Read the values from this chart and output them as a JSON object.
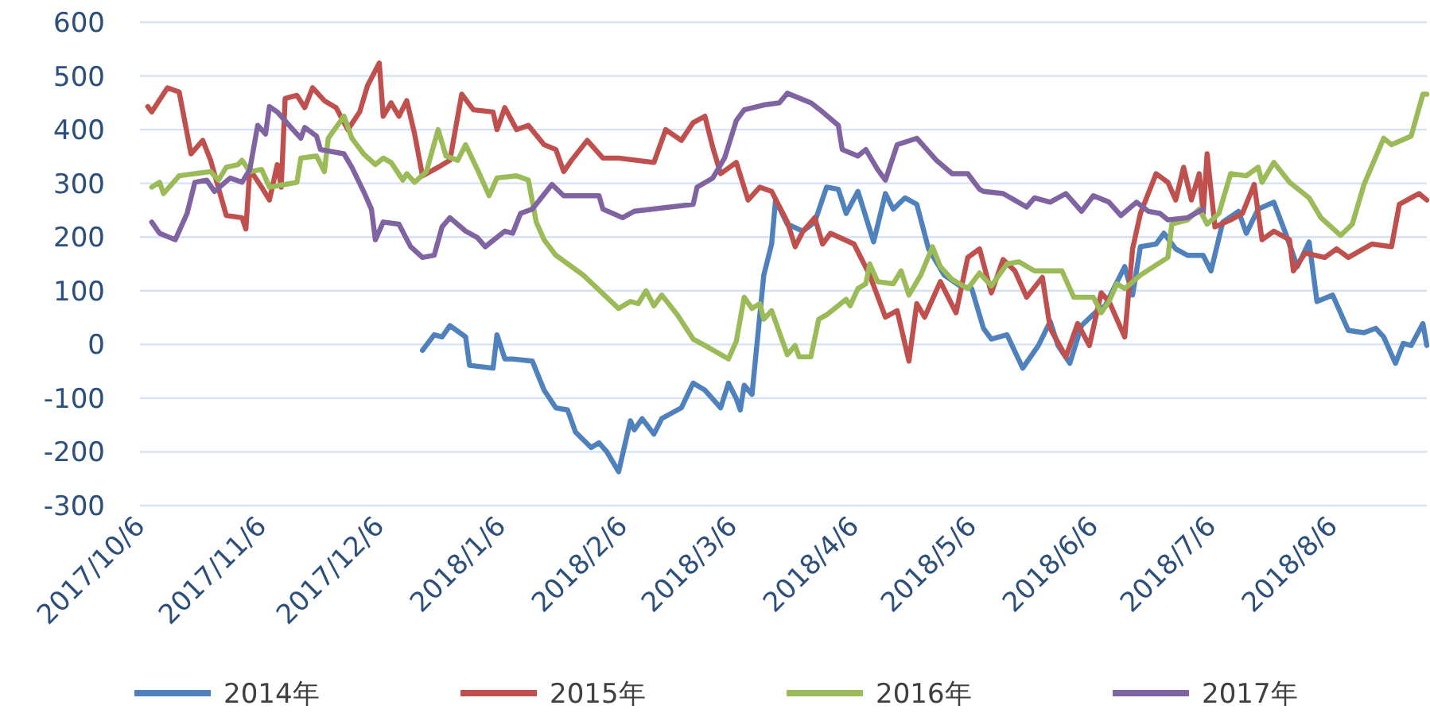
{
  "chart_data": {
    "type": "line",
    "legend": "bottom",
    "grid": "y",
    "xlim": [
      "2017-10-06",
      "2018-08-30"
    ],
    "xticks": [
      {
        "value": "2017-10-06",
        "label": "2017/10/6"
      },
      {
        "value": "2017-11-06",
        "label": "2017/11/6"
      },
      {
        "value": "2017-12-06",
        "label": "2017/12/6"
      },
      {
        "value": "2018-01-06",
        "label": "2018/1/6"
      },
      {
        "value": "2018-02-06",
        "label": "2018/2/6"
      },
      {
        "value": "2018-03-06",
        "label": "2018/3/6"
      },
      {
        "value": "2018-04-06",
        "label": "2018/4/6"
      },
      {
        "value": "2018-05-06",
        "label": "2018/5/6"
      },
      {
        "value": "2018-06-06",
        "label": "2018/6/6"
      },
      {
        "value": "2018-07-06",
        "label": "2018/7/6"
      },
      {
        "value": "2018-08-06",
        "label": "2018/8/6"
      }
    ],
    "ylim": [
      -300,
      600
    ],
    "yticks": [
      -300,
      -200,
      -100,
      0,
      100,
      200,
      300,
      400,
      500,
      600
    ],
    "series": [
      {
        "name": "2014年",
        "color": "#4f81bd",
        "x": [
          "2017-12-17",
          "2017-12-20",
          "2017-12-22",
          "2017-12-24",
          "2017-12-28",
          "2017-12-29",
          "2018-01-04",
          "2018-01-05",
          "2018-01-07",
          "2018-01-09",
          "2018-01-14",
          "2018-01-17",
          "2018-01-20",
          "2018-01-23",
          "2018-01-25",
          "2018-01-29",
          "2018-01-31",
          "2018-02-02",
          "2018-02-05",
          "2018-02-08",
          "2018-02-09",
          "2018-02-11",
          "2018-02-14",
          "2018-02-16",
          "2018-02-21",
          "2018-02-24",
          "2018-02-27",
          "2018-03-03",
          "2018-03-05",
          "2018-03-07",
          "2018-03-08",
          "2018-03-09",
          "2018-03-11",
          "2018-03-14",
          "2018-03-16",
          "2018-03-17",
          "2018-03-20",
          "2018-03-24",
          "2018-03-27",
          "2018-03-30",
          "2018-04-02",
          "2018-04-04",
          "2018-04-07",
          "2018-04-11",
          "2018-04-14",
          "2018-04-16",
          "2018-04-19",
          "2018-04-22",
          "2018-04-25",
          "2018-04-29",
          "2018-05-03",
          "2018-05-06",
          "2018-05-09",
          "2018-05-11",
          "2018-05-15",
          "2018-05-19",
          "2018-05-23",
          "2018-05-26",
          "2018-05-28",
          "2018-05-31",
          "2018-06-03",
          "2018-06-07",
          "2018-06-09",
          "2018-06-14",
          "2018-06-16",
          "2018-06-18",
          "2018-06-22",
          "2018-06-24",
          "2018-06-27",
          "2018-06-30",
          "2018-07-04",
          "2018-07-06",
          "2018-07-09",
          "2018-07-13",
          "2018-07-15",
          "2018-07-18",
          "2018-07-22",
          "2018-07-25",
          "2018-07-28",
          "2018-07-31",
          "2018-08-02",
          "2018-08-06",
          "2018-08-10",
          "2018-08-14",
          "2018-08-17",
          "2018-08-19",
          "2018-08-22",
          "2018-08-24",
          "2018-08-26",
          "2018-08-29",
          "2018-08-30"
        ],
        "values": [
          -11,
          18,
          14,
          35,
          14,
          -39,
          -44,
          18,
          -27,
          -27,
          -31,
          -85,
          -118,
          -122,
          -163,
          -192,
          -183,
          -200,
          -237,
          -142,
          -159,
          -138,
          -167,
          -138,
          -118,
          -72,
          -85,
          -118,
          -72,
          -101,
          -122,
          -76,
          -93,
          129,
          187,
          269,
          224,
          211,
          228,
          293,
          289,
          244,
          285,
          191,
          281,
          252,
          273,
          261,
          178,
          129,
          109,
          104,
          30,
          10,
          18,
          -44,
          -2,
          43,
          -2,
          -35,
          35,
          63,
          72,
          145,
          92,
          182,
          187,
          207,
          178,
          166,
          166,
          137,
          228,
          248,
          207,
          252,
          265,
          207,
          145,
          191,
          80,
          92,
          26,
          22,
          30,
          14,
          -35,
          2,
          -2,
          39,
          -2
        ]
      },
      {
        "name": "2015年",
        "color": "#c0504d",
        "x": [
          "2017-10-08",
          "2017-10-09",
          "2017-10-13",
          "2017-10-16",
          "2017-10-19",
          "2017-10-22",
          "2017-10-24",
          "2017-10-28",
          "2017-11-01",
          "2017-11-02",
          "2017-11-03",
          "2017-11-06",
          "2017-11-08",
          "2017-11-10",
          "2017-11-11",
          "2017-11-12",
          "2017-11-15",
          "2017-11-17",
          "2017-11-19",
          "2017-11-22",
          "2017-11-25",
          "2017-11-28",
          "2017-12-01",
          "2017-12-03",
          "2017-12-06",
          "2017-12-07",
          "2017-12-09",
          "2017-12-11",
          "2017-12-13",
          "2017-12-15",
          "2017-12-17",
          "2017-12-21",
          "2017-12-24",
          "2017-12-27",
          "2017-12-30",
          "2018-01-04",
          "2018-01-05",
          "2018-01-07",
          "2018-01-10",
          "2018-01-13",
          "2018-01-17",
          "2018-01-20",
          "2018-01-22",
          "2018-01-24",
          "2018-01-28",
          "2018-02-01",
          "2018-02-05",
          "2018-02-14",
          "2018-02-17",
          "2018-02-21",
          "2018-02-24",
          "2018-02-27",
          "2018-03-01",
          "2018-03-03",
          "2018-03-07",
          "2018-03-10",
          "2018-03-13",
          "2018-03-16",
          "2018-03-20",
          "2018-03-22",
          "2018-03-24",
          "2018-03-27",
          "2018-03-29",
          "2018-03-31",
          "2018-04-06",
          "2018-04-10",
          "2018-04-14",
          "2018-04-17",
          "2018-04-20",
          "2018-04-22",
          "2018-04-24",
          "2018-04-28",
          "2018-05-02",
          "2018-05-05",
          "2018-05-08",
          "2018-05-11",
          "2018-05-14",
          "2018-05-17",
          "2018-05-20",
          "2018-05-24",
          "2018-05-26",
          "2018-05-30",
          "2018-06-02",
          "2018-06-05",
          "2018-06-08",
          "2018-06-10",
          "2018-06-14",
          "2018-06-16",
          "2018-06-18",
          "2018-06-22",
          "2018-06-25",
          "2018-06-27",
          "2018-06-29",
          "2018-07-01",
          "2018-07-03",
          "2018-07-04",
          "2018-07-05",
          "2018-07-07",
          "2018-07-11",
          "2018-07-14",
          "2018-07-17",
          "2018-07-19",
          "2018-07-22",
          "2018-07-26",
          "2018-07-27",
          "2018-07-30",
          "2018-08-04",
          "2018-08-07",
          "2018-08-10",
          "2018-08-16",
          "2018-08-21",
          "2018-08-23",
          "2018-08-28",
          "2018-08-30"
        ],
        "values": [
          443,
          433,
          478,
          470,
          355,
          380,
          343,
          240,
          236,
          215,
          326,
          293,
          269,
          335,
          293,
          458,
          464,
          441,
          478,
          454,
          441,
          400,
          433,
          482,
          524,
          425,
          450,
          425,
          454,
          392,
          314,
          330,
          343,
          466,
          437,
          433,
          400,
          441,
          400,
          408,
          372,
          363,
          322,
          343,
          380,
          347,
          347,
          339,
          400,
          380,
          413,
          425,
          367,
          318,
          339,
          269,
          293,
          285,
          228,
          182,
          211,
          236,
          187,
          207,
          187,
          129,
          51,
          63,
          -31,
          76,
          51,
          117,
          59,
          162,
          178,
          96,
          158,
          137,
          88,
          125,
          30,
          -23,
          39,
          -2,
          96,
          80,
          14,
          178,
          244,
          318,
          302,
          269,
          330,
          269,
          318,
          244,
          355,
          219,
          232,
          244,
          298,
          195,
          211,
          195,
          137,
          170,
          162,
          178,
          162,
          187,
          182,
          261,
          281,
          269
        ]
      },
      {
        "name": "2016年",
        "color": "#9bbb59",
        "x": [
          "2017-10-09",
          "2017-10-11",
          "2017-10-12",
          "2017-10-16",
          "2017-10-24",
          "2017-10-26",
          "2017-10-28",
          "2017-10-31",
          "2017-11-01",
          "2017-11-03",
          "2017-11-06",
          "2017-11-08",
          "2017-11-12",
          "2017-11-15",
          "2017-11-16",
          "2017-11-20",
          "2017-11-22",
          "2017-11-23",
          "2017-11-27",
          "2017-11-29",
          "2017-12-02",
          "2017-12-05",
          "2017-12-07",
          "2017-12-09",
          "2017-12-12",
          "2017-12-13",
          "2017-12-15",
          "2017-12-18",
          "2017-12-21",
          "2017-12-23",
          "2017-12-26",
          "2017-12-28",
          "2017-12-31",
          "2018-01-03",
          "2018-01-05",
          "2018-01-10",
          "2018-01-13",
          "2018-01-15",
          "2018-01-17",
          "2018-01-20",
          "2018-01-27",
          "2018-02-05",
          "2018-02-08",
          "2018-02-10",
          "2018-02-12",
          "2018-02-14",
          "2018-02-16",
          "2018-02-20",
          "2018-02-24",
          "2018-02-27",
          "2018-03-05",
          "2018-03-07",
          "2018-03-09",
          "2018-03-11",
          "2018-03-13",
          "2018-03-14",
          "2018-03-16",
          "2018-03-20",
          "2018-03-22",
          "2018-03-23",
          "2018-03-26",
          "2018-03-28",
          "2018-03-30",
          "2018-04-04",
          "2018-04-05",
          "2018-04-07",
          "2018-04-09",
          "2018-04-10",
          "2018-04-12",
          "2018-04-16",
          "2018-04-18",
          "2018-04-20",
          "2018-04-23",
          "2018-04-26",
          "2018-04-28",
          "2018-05-01",
          "2018-05-05",
          "2018-05-08",
          "2018-05-11",
          "2018-05-15",
          "2018-05-18",
          "2018-05-22",
          "2018-05-29",
          "2018-06-01",
          "2018-06-06",
          "2018-06-08",
          "2018-06-10",
          "2018-06-12",
          "2018-06-14",
          "2018-06-18",
          "2018-06-25",
          "2018-06-26",
          "2018-06-30",
          "2018-07-03",
          "2018-07-05",
          "2018-07-08",
          "2018-07-11",
          "2018-07-15",
          "2018-07-18",
          "2018-07-19",
          "2018-07-22",
          "2018-07-26",
          "2018-07-31",
          "2018-08-03",
          "2018-08-08",
          "2018-08-11",
          "2018-08-14",
          "2018-08-19",
          "2018-08-21",
          "2018-08-26",
          "2018-08-29",
          "2018-08-30"
        ],
        "values": [
          293,
          302,
          281,
          314,
          322,
          306,
          330,
          335,
          343,
          322,
          326,
          293,
          298,
          302,
          347,
          351,
          322,
          384,
          425,
          384,
          355,
          335,
          347,
          339,
          306,
          318,
          302,
          322,
          400,
          351,
          343,
          372,
          326,
          277,
          310,
          314,
          306,
          228,
          195,
          166,
          129,
          67,
          80,
          76,
          100,
          72,
          92,
          55,
          10,
          -2,
          -27,
          6,
          88,
          67,
          76,
          47,
          63,
          -19,
          -2,
          -23,
          -23,
          47,
          55,
          84,
          72,
          104,
          113,
          150,
          117,
          113,
          137,
          92,
          129,
          182,
          145,
          121,
          104,
          133,
          109,
          150,
          154,
          137,
          137,
          88,
          88,
          59,
          80,
          113,
          104,
          129,
          162,
          224,
          232,
          252,
          224,
          244,
          318,
          314,
          330,
          302,
          339,
          302,
          273,
          236,
          203,
          224,
          298,
          384,
          372,
          388,
          466,
          466
        ]
      },
      {
        "name": "2017年",
        "color": "#8064a2",
        "x": [
          "2017-10-09",
          "2017-10-11",
          "2017-10-15",
          "2017-10-18",
          "2017-10-20",
          "2017-10-23",
          "2017-10-25",
          "2017-10-29",
          "2017-11-01",
          "2017-11-03",
          "2017-11-05",
          "2017-11-07",
          "2017-11-08",
          "2017-11-10",
          "2017-11-14",
          "2017-11-16",
          "2017-11-17",
          "2017-11-20",
          "2017-11-21",
          "2017-11-27",
          "2017-11-29",
          "2017-12-02",
          "2017-12-04",
          "2017-12-05",
          "2017-12-07",
          "2017-12-11",
          "2017-12-14",
          "2017-12-17",
          "2017-12-20",
          "2017-12-22",
          "2017-12-24",
          "2017-12-28",
          "2017-12-31",
          "2018-01-02",
          "2018-01-07",
          "2018-01-09",
          "2018-01-11",
          "2018-01-14",
          "2018-01-19",
          "2018-01-22",
          "2018-01-31",
          "2018-02-01",
          "2018-02-06",
          "2018-02-09",
          "2018-02-24",
          "2018-02-25",
          "2018-03-01",
          "2018-03-04",
          "2018-03-07",
          "2018-03-09",
          "2018-03-14",
          "2018-03-18",
          "2018-03-20",
          "2018-03-26",
          "2018-03-29",
          "2018-04-02",
          "2018-04-03",
          "2018-04-07",
          "2018-04-09",
          "2018-04-12",
          "2018-04-14",
          "2018-04-17",
          "2018-04-22",
          "2018-04-27",
          "2018-05-01",
          "2018-05-05",
          "2018-05-08",
          "2018-05-09",
          "2018-05-14",
          "2018-05-20",
          "2018-05-22",
          "2018-05-26",
          "2018-05-30",
          "2018-06-03",
          "2018-06-06",
          "2018-06-10",
          "2018-06-13",
          "2018-06-17",
          "2018-06-20",
          "2018-06-23",
          "2018-06-25",
          "2018-06-30",
          "2018-07-04"
        ],
        "values": [
          228,
          207,
          195,
          244,
          302,
          306,
          285,
          310,
          302,
          326,
          408,
          392,
          443,
          433,
          400,
          384,
          404,
          388,
          363,
          355,
          330,
          285,
          252,
          195,
          228,
          224,
          182,
          162,
          166,
          219,
          236,
          211,
          199,
          182,
          211,
          207,
          244,
          252,
          298,
          277,
          277,
          252,
          236,
          248,
          261,
          293,
          310,
          347,
          417,
          437,
          446,
          450,
          468,
          450,
          433,
          408,
          363,
          351,
          363,
          326,
          306,
          372,
          384,
          343,
          318,
          318,
          289,
          285,
          281,
          256,
          273,
          265,
          281,
          248,
          277,
          265,
          240,
          265,
          248,
          244,
          232,
          236,
          252
        ]
      }
    ]
  }
}
